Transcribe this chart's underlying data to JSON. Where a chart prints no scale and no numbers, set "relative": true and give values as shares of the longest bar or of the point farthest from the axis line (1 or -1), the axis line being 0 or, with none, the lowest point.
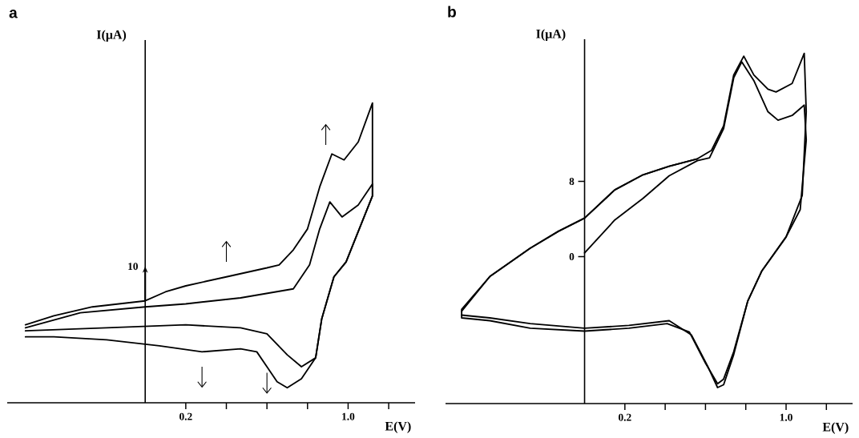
{
  "chart_data": [
    {
      "type": "line",
      "title": "a",
      "xlabel": "E(V)",
      "ylabel": "I(μA)",
      "relative": true,
      "xlim": [
        -0.68,
        1.33
      ],
      "xticks": [
        {
          "value": 0.2,
          "label": "0.2"
        },
        {
          "value": 0.4,
          "label": null
        },
        {
          "value": 0.6,
          "label": null
        },
        {
          "value": 0.8,
          "label": null
        },
        {
          "value": 1.0,
          "label": "1.0"
        },
        {
          "value": 1.2,
          "label": null
        }
      ],
      "annotations": [
        "10"
      ],
      "series": [
        {
          "color": "#000000",
          "x": [
            -0.59,
            -0.32,
            0.0,
            0.2,
            0.47,
            0.73,
            0.81,
            0.86,
            0.91,
            0.97,
            1.05,
            1.12,
            1.12,
            0.99,
            0.93,
            0.87,
            0.84,
            0.77,
            0.7,
            0.6,
            0.47,
            0.2,
            -0.19,
            -0.59
          ],
          "values": [
            0.25,
            0.3,
            0.32,
            0.33,
            0.35,
            0.38,
            0.46,
            0.58,
            0.67,
            0.62,
            0.66,
            0.73,
            0.69,
            0.47,
            0.42,
            0.28,
            0.15,
            0.12,
            0.16,
            0.23,
            0.25,
            0.26,
            0.25,
            0.24
          ]
        },
        {
          "color": "#000000",
          "x": [
            -0.59,
            -0.45,
            -0.26,
            0.0,
            0.1,
            0.2,
            0.4,
            0.6,
            0.66,
            0.73,
            0.8,
            0.86,
            0.92,
            0.98,
            1.05,
            1.12,
            1.12,
            0.99,
            0.93,
            0.87,
            0.84,
            0.77,
            0.7,
            0.65,
            0.6,
            0.55,
            0.47,
            0.28,
            0.07,
            -0.19,
            -0.45,
            -0.59
          ],
          "values": [
            0.26,
            0.29,
            0.32,
            0.34,
            0.37,
            0.39,
            0.42,
            0.45,
            0.46,
            0.51,
            0.58,
            0.72,
            0.83,
            0.81,
            0.87,
            1.0,
            0.69,
            0.47,
            0.42,
            0.28,
            0.15,
            0.08,
            0.05,
            0.07,
            0.12,
            0.17,
            0.18,
            0.17,
            0.19,
            0.21,
            0.22,
            0.22
          ]
        }
      ]
    },
    {
      "type": "line",
      "title": "b",
      "xlabel": "E(V)",
      "ylabel": "I(μA)",
      "xlim": [
        -0.69,
        1.33
      ],
      "ylim": [
        -15.6,
        23.1
      ],
      "xticks": [
        {
          "value": 0.2,
          "label": "0.2"
        },
        {
          "value": 0.4,
          "label": null
        },
        {
          "value": 0.6,
          "label": null
        },
        {
          "value": 0.8,
          "label": null
        },
        {
          "value": 1.0,
          "label": "1.0"
        },
        {
          "value": 1.2,
          "label": null
        }
      ],
      "yticks": [
        0,
        8
      ],
      "series": [
        {
          "color": "#000000",
          "x": [
            0.0,
            0.15,
            0.29,
            0.42,
            0.56,
            0.62,
            0.69,
            0.74,
            0.78,
            0.84,
            0.91,
            0.96,
            1.03,
            1.09,
            1.1,
            1.07,
            1.0,
            0.88,
            0.81,
            0.74,
            0.69,
            0.66,
            0.6,
            0.52,
            0.41,
            0.22,
            0.0,
            -0.27,
            -0.47,
            -0.61,
            -0.61,
            -0.47,
            -0.27,
            -0.13,
            0.0,
            0.15,
            0.29,
            0.42,
            0.56
          ],
          "values": [
            0.4,
            3.9,
            6.2,
            8.6,
            10.2,
            10.5,
            13.6,
            19.0,
            20.7,
            18.7,
            15.4,
            14.5,
            15.0,
            16.1,
            12.4,
            5.0,
            2.1,
            -1.5,
            -4.7,
            -10.1,
            -13.0,
            -13.5,
            -11.3,
            -8.0,
            -7.1,
            -7.6,
            -7.9,
            -7.6,
            -6.8,
            -6.5,
            -5.6,
            -2.1,
            0.9,
            2.7,
            4.1,
            7.1,
            8.7,
            9.6,
            10.4
          ]
        },
        {
          "color": "#000000",
          "x": [
            -0.61,
            -0.47,
            -0.27,
            -0.13,
            0.0,
            0.15,
            0.29,
            0.42,
            0.56,
            0.63,
            0.69,
            0.74,
            0.79,
            0.84,
            0.91,
            0.95,
            1.03,
            1.09,
            1.1,
            1.08,
            1.0,
            0.88,
            0.81,
            0.74,
            0.69,
            0.66,
            0.61,
            0.53,
            0.42,
            0.22,
            0.0,
            -0.27,
            -0.47,
            -0.61
          ],
          "values": [
            -5.8,
            -2.1,
            0.9,
            2.7,
            4.1,
            7.1,
            8.7,
            9.6,
            10.4,
            11.3,
            13.9,
            19.3,
            21.3,
            19.3,
            17.8,
            17.5,
            18.4,
            21.6,
            15.4,
            6.5,
            2.1,
            -1.5,
            -4.7,
            -10.4,
            -13.6,
            -13.9,
            -11.6,
            -8.3,
            -6.8,
            -7.3,
            -7.6,
            -7.1,
            -6.5,
            -6.2
          ]
        }
      ]
    }
  ]
}
